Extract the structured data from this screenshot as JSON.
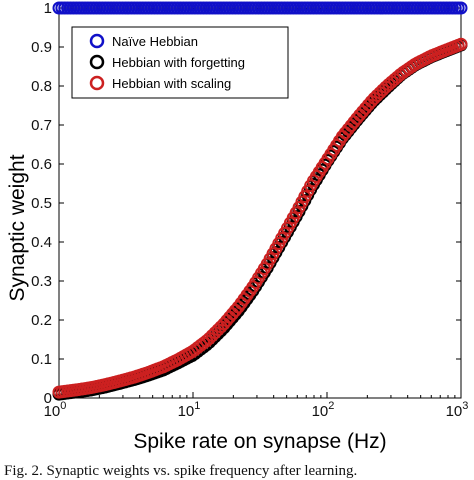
{
  "caption": "Fig. 2. Synaptic weights vs. spike frequency after learning.",
  "chart_data": {
    "type": "scatter",
    "xlabel": "Spike rate on synapse (Hz)",
    "ylabel": "Synaptic weight",
    "xscale": "log",
    "xlim": [
      1,
      1000
    ],
    "ylim": [
      0,
      1
    ],
    "xticks": [
      {
        "value": 1,
        "base": "10",
        "exp": "0"
      },
      {
        "value": 10,
        "base": "10",
        "exp": "1"
      },
      {
        "value": 100,
        "base": "10",
        "exp": "2"
      },
      {
        "value": 1000,
        "base": "10",
        "exp": "3"
      }
    ],
    "yticks": [
      {
        "value": 0,
        "label": "0"
      },
      {
        "value": 0.1,
        "label": "0.1"
      },
      {
        "value": 0.2,
        "label": "0.2"
      },
      {
        "value": 0.3,
        "label": "0.3"
      },
      {
        "value": 0.4,
        "label": "0.4"
      },
      {
        "value": 0.5,
        "label": "0.5"
      },
      {
        "value": 0.6,
        "label": "0.6"
      },
      {
        "value": 0.7,
        "label": "0.7"
      },
      {
        "value": 0.8,
        "label": "0.8"
      },
      {
        "value": 0.9,
        "label": "0.9"
      },
      {
        "value": 1,
        "label": "1"
      }
    ],
    "legend_position": "top-left",
    "grid": false,
    "marker": "open-circle",
    "series": [
      {
        "name": "Naïve Hebbian",
        "color": "#1010c8",
        "x": [
          1,
          1.3,
          1.7,
          2.2,
          2.8,
          3.6,
          4.6,
          6,
          7.7,
          10,
          13,
          17,
          22,
          28,
          36,
          46,
          60,
          77,
          100,
          130,
          170,
          220,
          280,
          360,
          460,
          600,
          770,
          1000
        ],
        "y": [
          1,
          1,
          1,
          1,
          1,
          1,
          1,
          1,
          1,
          1,
          1,
          1,
          1,
          1,
          1,
          1,
          1,
          1,
          1,
          1,
          1,
          1,
          1,
          1,
          1,
          1,
          1,
          1
        ]
      },
      {
        "name": "Hebbian with forgetting",
        "color": "#000000",
        "x": [
          1,
          1.3,
          1.7,
          2.2,
          2.8,
          3.6,
          4.6,
          6,
          7.7,
          10,
          13,
          17,
          22,
          28,
          36,
          46,
          60,
          77,
          100,
          130,
          170,
          220,
          280,
          360,
          460,
          600,
          770,
          1000
        ],
        "y": [
          0.01,
          0.015,
          0.02,
          0.028,
          0.037,
          0.047,
          0.058,
          0.072,
          0.09,
          0.11,
          0.14,
          0.18,
          0.225,
          0.275,
          0.335,
          0.4,
          0.47,
          0.54,
          0.605,
          0.665,
          0.715,
          0.76,
          0.795,
          0.83,
          0.855,
          0.875,
          0.89,
          0.905
        ]
      },
      {
        "name": "Hebbian with scaling",
        "color": "#cc2020",
        "x": [
          1,
          1.3,
          1.7,
          2.2,
          2.8,
          3.6,
          4.6,
          6,
          7.7,
          10,
          13,
          17,
          22,
          28,
          36,
          46,
          60,
          77,
          100,
          130,
          170,
          220,
          280,
          360,
          460,
          600,
          770,
          1000
        ],
        "y": [
          0.015,
          0.02,
          0.026,
          0.034,
          0.043,
          0.053,
          0.065,
          0.08,
          0.098,
          0.12,
          0.15,
          0.19,
          0.235,
          0.285,
          0.345,
          0.41,
          0.48,
          0.55,
          0.61,
          0.67,
          0.72,
          0.765,
          0.8,
          0.832,
          0.857,
          0.877,
          0.892,
          0.907
        ]
      }
    ]
  }
}
